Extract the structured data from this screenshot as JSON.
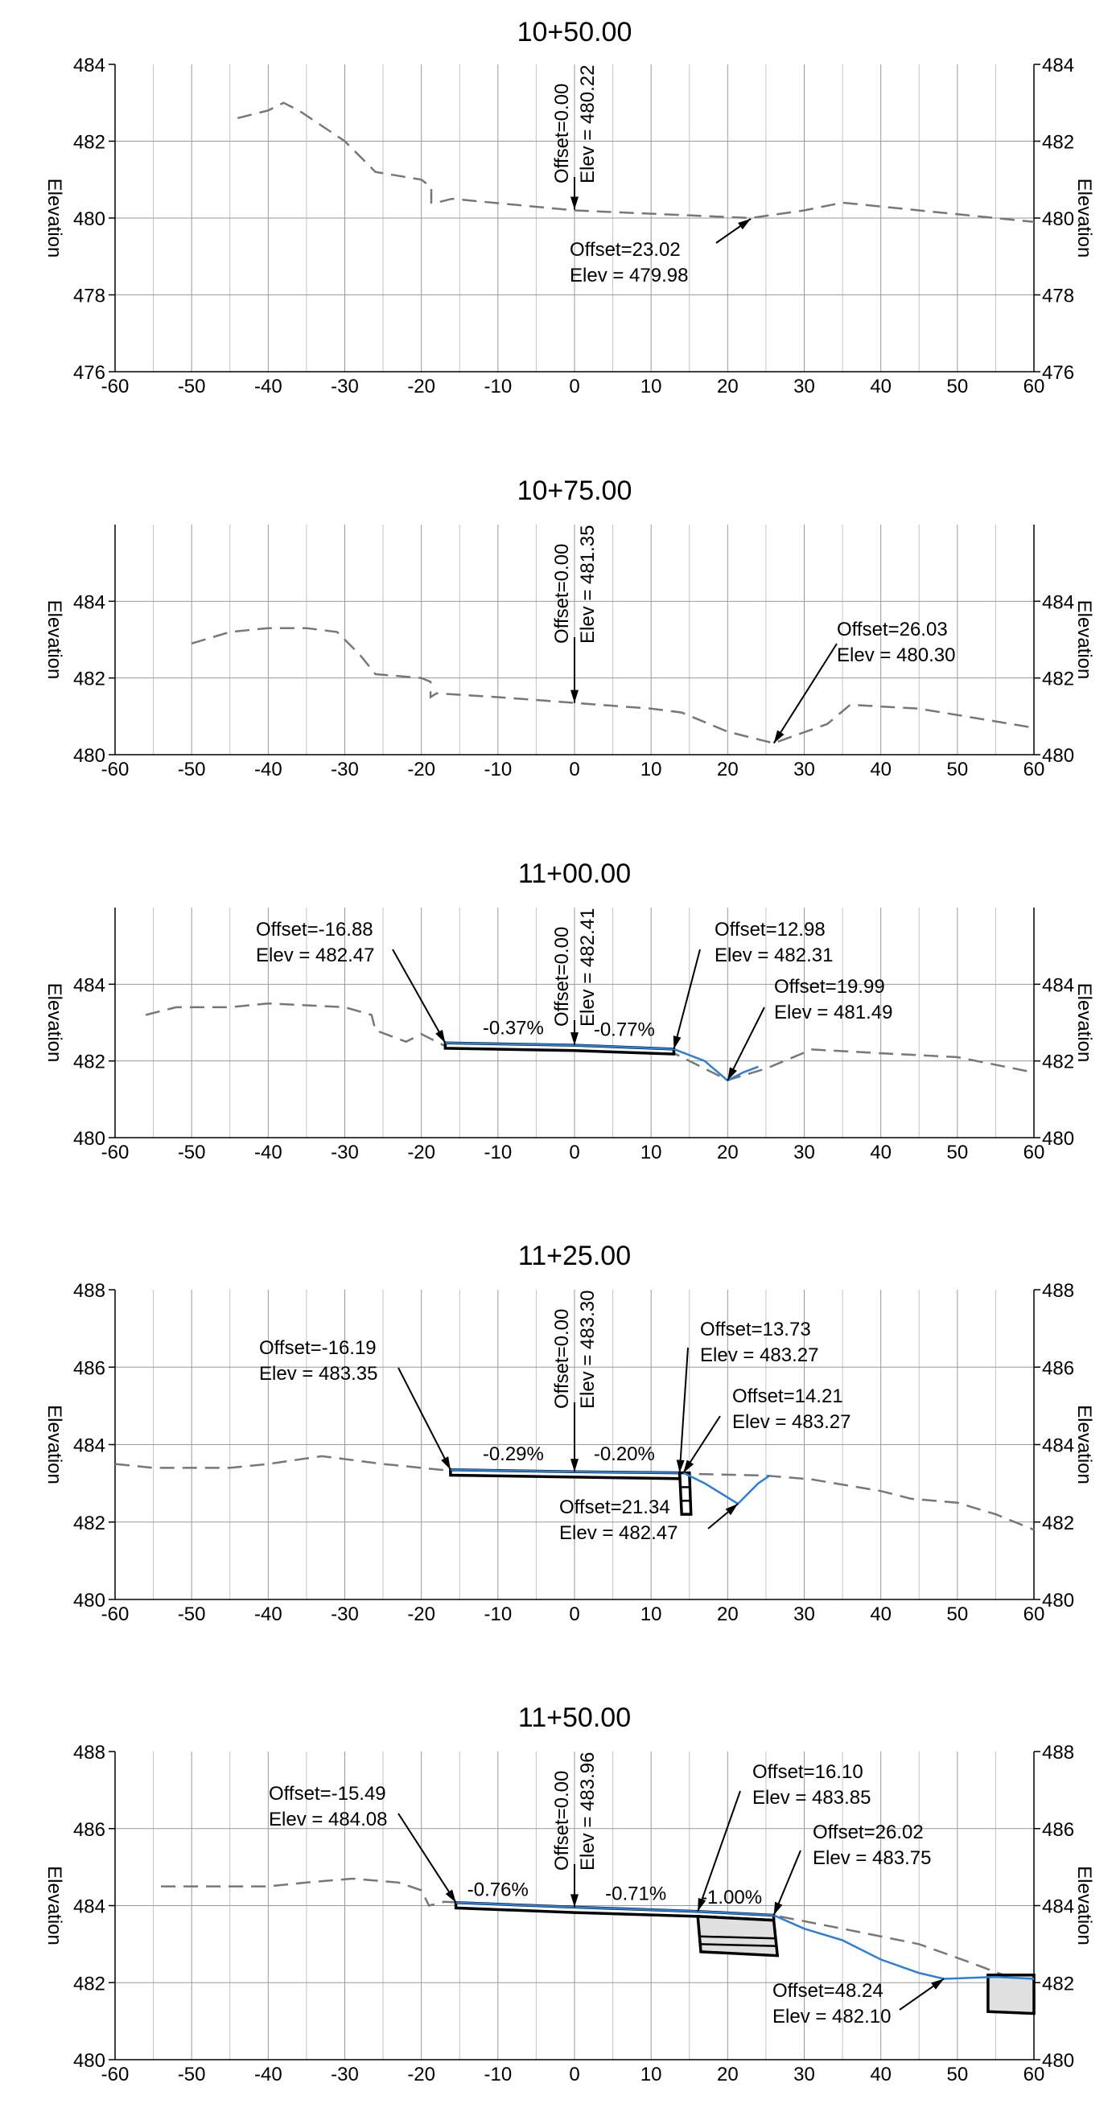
{
  "axis_label": "Elevation",
  "x_ticks": [
    "-60",
    "-50",
    "-40",
    "-30",
    "-20",
    "-10",
    "0",
    "10",
    "20",
    "30",
    "40",
    "50",
    "60"
  ],
  "sections": [
    {
      "title": "10+50.00",
      "y_ticks": [
        {
          "v": 484,
          "label": "484"
        },
        {
          "v": 482,
          "label": "482"
        },
        {
          "v": 480,
          "label": "480"
        },
        {
          "v": 478,
          "label": "478"
        },
        {
          "v": 476,
          "label": "476"
        }
      ],
      "ylim": [
        476,
        484
      ],
      "ground": [
        [
          -44,
          482.6
        ],
        [
          -40,
          482.8
        ],
        [
          -38,
          483.0
        ],
        [
          -36,
          482.8
        ],
        [
          -30,
          482.0
        ],
        [
          -26,
          481.2
        ],
        [
          -20,
          481.0
        ],
        [
          -18.7,
          480.8
        ],
        [
          -18.7,
          480.4
        ],
        [
          -18,
          480.4
        ],
        [
          -16,
          480.5
        ],
        [
          0,
          480.2
        ],
        [
          23,
          480.0
        ],
        [
          30,
          480.2
        ],
        [
          35,
          480.4
        ],
        [
          45,
          480.2
        ],
        [
          60,
          479.9
        ]
      ],
      "design": [],
      "water": [],
      "center": {
        "offset_label": "Offset=0.00",
        "elev_label": "Elev = 480.22",
        "elev": 480.22
      },
      "annotations": [
        {
          "line1": "Offset=23.02",
          "line2": "Elev = 479.98",
          "x": 23.02,
          "y": 479.98
        }
      ],
      "grades": [],
      "structures": []
    },
    {
      "title": "10+75.00",
      "y_ticks": [
        {
          "v": 484,
          "label": "484"
        },
        {
          "v": 482,
          "label": "482"
        },
        {
          "v": 480,
          "label": "480"
        }
      ],
      "ylim": [
        480,
        486
      ],
      "ground": [
        [
          -50,
          482.9
        ],
        [
          -45,
          483.2
        ],
        [
          -40,
          483.3
        ],
        [
          -35,
          483.3
        ],
        [
          -31,
          483.2
        ],
        [
          -28,
          482.6
        ],
        [
          -26,
          482.1
        ],
        [
          -20,
          482.0
        ],
        [
          -18.8,
          481.9
        ],
        [
          -18.8,
          481.5
        ],
        [
          -18,
          481.6
        ],
        [
          -10,
          481.5
        ],
        [
          0,
          481.35
        ],
        [
          10,
          481.2
        ],
        [
          14,
          481.1
        ],
        [
          20,
          480.6
        ],
        [
          26,
          480.3
        ],
        [
          33,
          480.8
        ],
        [
          36,
          481.3
        ],
        [
          45,
          481.2
        ],
        [
          60,
          480.7
        ]
      ],
      "design": [],
      "water": [],
      "center": {
        "offset_label": "Offset=0.00",
        "elev_label": "Elev = 481.35",
        "elev": 481.35
      },
      "annotations": [
        {
          "line1": "Offset=26.03",
          "line2": "Elev = 480.30",
          "x": 26.03,
          "y": 480.3
        }
      ],
      "grades": [],
      "structures": []
    },
    {
      "title": "11+00.00",
      "y_ticks": [
        {
          "v": 484,
          "label": "484"
        },
        {
          "v": 482,
          "label": "482"
        },
        {
          "v": 480,
          "label": "480"
        }
      ],
      "ylim": [
        480,
        486
      ],
      "ground": [
        [
          -56,
          483.2
        ],
        [
          -52,
          483.4
        ],
        [
          -45,
          483.4
        ],
        [
          -40,
          483.5
        ],
        [
          -30,
          483.4
        ],
        [
          -26.5,
          483.2
        ],
        [
          -26,
          482.8
        ],
        [
          -22,
          482.5
        ],
        [
          -20,
          482.7
        ],
        [
          -17,
          482.4
        ],
        [
          13,
          482.2
        ],
        [
          20,
          481.5
        ],
        [
          25,
          481.8
        ],
        [
          31,
          482.3
        ],
        [
          40,
          482.2
        ],
        [
          50,
          482.1
        ],
        [
          60,
          481.7
        ]
      ],
      "design": [
        {
          "pts": [
            [
              -16.88,
              482.47
            ],
            [
              0,
              482.41
            ],
            [
              12.98,
              482.31
            ],
            [
              12.98,
              482.18
            ],
            [
              0,
              482.27
            ],
            [
              -16.88,
              482.33
            ]
          ]
        }
      ],
      "water": [
        [
          12.98,
          482.31
        ],
        [
          17,
          482.0
        ],
        [
          19.99,
          481.49
        ],
        [
          22,
          481.7
        ],
        [
          24,
          481.85
        ]
      ],
      "center": {
        "offset_label": "Offset=0.00",
        "elev_label": "Elev = 482.41",
        "elev": 482.41
      },
      "annotations": [
        {
          "line1": "Offset=-16.88",
          "line2": "Elev = 482.47",
          "x": -16.88,
          "y": 482.47
        },
        {
          "line1": "Offset=12.98",
          "line2": "Elev = 482.31",
          "x": 12.98,
          "y": 482.31
        },
        {
          "line1": "Offset=19.99",
          "line2": "Elev = 481.49",
          "x": 19.99,
          "y": 481.49
        }
      ],
      "grades": [
        {
          "label": "-0.37%",
          "x": -8,
          "y": 482.7
        },
        {
          "label": "-0.77%",
          "x": 6.5,
          "y": 482.65
        }
      ],
      "structures": []
    },
    {
      "title": "11+25.00",
      "y_ticks": [
        {
          "v": 488,
          "label": "488"
        },
        {
          "v": 486,
          "label": "486"
        },
        {
          "v": 484,
          "label": "484"
        },
        {
          "v": 482,
          "label": "482"
        },
        {
          "v": 480,
          "label": "480"
        }
      ],
      "ylim": [
        480,
        488
      ],
      "ground": [
        [
          -60,
          483.5
        ],
        [
          -55,
          483.4
        ],
        [
          -45,
          483.4
        ],
        [
          -40,
          483.5
        ],
        [
          -33,
          483.7
        ],
        [
          -25,
          483.5
        ],
        [
          -15,
          483.3
        ],
        [
          0,
          483.3
        ],
        [
          14,
          483.25
        ],
        [
          25,
          483.2
        ],
        [
          31,
          483.1
        ],
        [
          40,
          482.8
        ],
        [
          44,
          482.6
        ],
        [
          50,
          482.5
        ],
        [
          55,
          482.2
        ],
        [
          60,
          481.8
        ]
      ],
      "design": [
        {
          "pts": [
            [
              -16.19,
              483.35
            ],
            [
              0,
              483.3
            ],
            [
              13.73,
              483.27
            ],
            [
              13.73,
              483.12
            ],
            [
              0,
              483.16
            ],
            [
              -16.19,
              483.21
            ]
          ]
        }
      ],
      "water": [
        [
          14.21,
          483.27
        ],
        [
          17,
          483.0
        ],
        [
          21.34,
          482.47
        ],
        [
          24,
          483.0
        ],
        [
          25.5,
          483.2
        ]
      ],
      "center": {
        "offset_label": "Offset=0.00",
        "elev_label": "Elev = 483.30",
        "elev": 483.3
      },
      "annotations": [
        {
          "line1": "Offset=-16.19",
          "line2": "Elev = 483.35",
          "x": -16.19,
          "y": 483.35
        },
        {
          "line1": "Offset=13.73",
          "line2": "Elev = 483.27",
          "x": 13.73,
          "y": 483.27
        },
        {
          "line1": "Offset=14.21",
          "line2": "Elev = 483.27",
          "x": 14.21,
          "y": 483.27
        },
        {
          "line1": "Offset=21.34",
          "line2": "Elev = 482.47",
          "x": 21.34,
          "y": 482.47
        }
      ],
      "grades": [
        {
          "label": "-0.29%",
          "x": -8,
          "y": 483.6
        },
        {
          "label": "-0.20%",
          "x": 6.5,
          "y": 483.6
        }
      ],
      "structures": [
        {
          "pts": [
            [
              13.73,
              483.27
            ],
            [
              15,
              483.27
            ],
            [
              15.2,
              482.2
            ],
            [
              14.0,
              482.2
            ]
          ],
          "fill": "#ffffff"
        },
        {
          "pts": [
            [
              14.0,
              482.9
            ],
            [
              15.1,
              482.9
            ]
          ],
          "fill": "none"
        },
        {
          "pts": [
            [
              14.0,
              482.55
            ],
            [
              15.15,
              482.55
            ]
          ],
          "fill": "none"
        }
      ]
    },
    {
      "title": "11+50.00",
      "y_ticks": [
        {
          "v": 488,
          "label": "488"
        },
        {
          "v": 486,
          "label": "486"
        },
        {
          "v": 484,
          "label": "484"
        },
        {
          "v": 482,
          "label": "482"
        },
        {
          "v": 480,
          "label": "480"
        }
      ],
      "ylim": [
        480,
        488
      ],
      "ground": [
        [
          -54,
          484.5
        ],
        [
          -48,
          484.5
        ],
        [
          -40,
          484.5
        ],
        [
          -35,
          484.6
        ],
        [
          -29,
          484.7
        ],
        [
          -23,
          484.6
        ],
        [
          -20,
          484.4
        ],
        [
          -19,
          484.0
        ],
        [
          -17,
          484.1
        ],
        [
          0,
          483.95
        ],
        [
          16,
          483.85
        ],
        [
          26,
          483.75
        ],
        [
          35,
          483.4
        ],
        [
          45,
          483.0
        ],
        [
          52,
          482.5
        ],
        [
          56,
          482.2
        ],
        [
          60,
          482.1
        ]
      ],
      "design": [
        {
          "pts": [
            [
              -15.49,
              484.08
            ],
            [
              0,
              483.96
            ],
            [
              16.1,
              483.85
            ],
            [
              26.02,
              483.75
            ],
            [
              26.02,
              483.62
            ],
            [
              16.1,
              483.72
            ],
            [
              0,
              483.82
            ],
            [
              -15.49,
              483.94
            ]
          ]
        }
      ],
      "water": [
        [
          26.02,
          483.75
        ],
        [
          30,
          483.4
        ],
        [
          35,
          483.1
        ],
        [
          40,
          482.6
        ],
        [
          45,
          482.25
        ],
        [
          48.24,
          482.1
        ],
        [
          55,
          482.15
        ],
        [
          60,
          482.1
        ]
      ],
      "center": {
        "offset_label": "Offset=0.00",
        "elev_label": "Elev = 483.96",
        "elev": 483.96
      },
      "annotations": [
        {
          "line1": "Offset=-15.49",
          "line2": "Elev = 484.08",
          "x": -15.49,
          "y": 484.08
        },
        {
          "line1": "Offset=16.10",
          "line2": "Elev = 483.85",
          "x": 16.1,
          "y": 483.85
        },
        {
          "line1": "Offset=26.02",
          "line2": "Elev = 483.75",
          "x": 26.02,
          "y": 483.75
        },
        {
          "line1": "Offset=48.24",
          "line2": "Elev = 482.10",
          "x": 48.24,
          "y": 482.1
        }
      ],
      "grades": [
        {
          "label": "-0.76%",
          "x": -10,
          "y": 484.25
        },
        {
          "label": "-0.71%",
          "x": 8,
          "y": 484.15
        },
        {
          "label": "-1.00%",
          "x": 20.5,
          "y": 484.05
        }
      ],
      "structures": [
        {
          "pts": [
            [
              16.1,
              483.72
            ],
            [
              26.02,
              483.62
            ],
            [
              26.5,
              482.7
            ],
            [
              16.5,
              482.8
            ]
          ],
          "fill": "#e0e0e0"
        },
        {
          "pts": [
            [
              16.3,
              483.2
            ],
            [
              26.3,
              483.15
            ]
          ],
          "fill": "none"
        },
        {
          "pts": [
            [
              16.4,
              483.0
            ],
            [
              26.4,
              482.95
            ]
          ],
          "fill": "none"
        },
        {
          "pts": [
            [
              54,
              482.2
            ],
            [
              60,
              482.2
            ],
            [
              60,
              481.2
            ],
            [
              54,
              481.25
            ]
          ],
          "fill": "#e0e0e0"
        }
      ]
    }
  ]
}
